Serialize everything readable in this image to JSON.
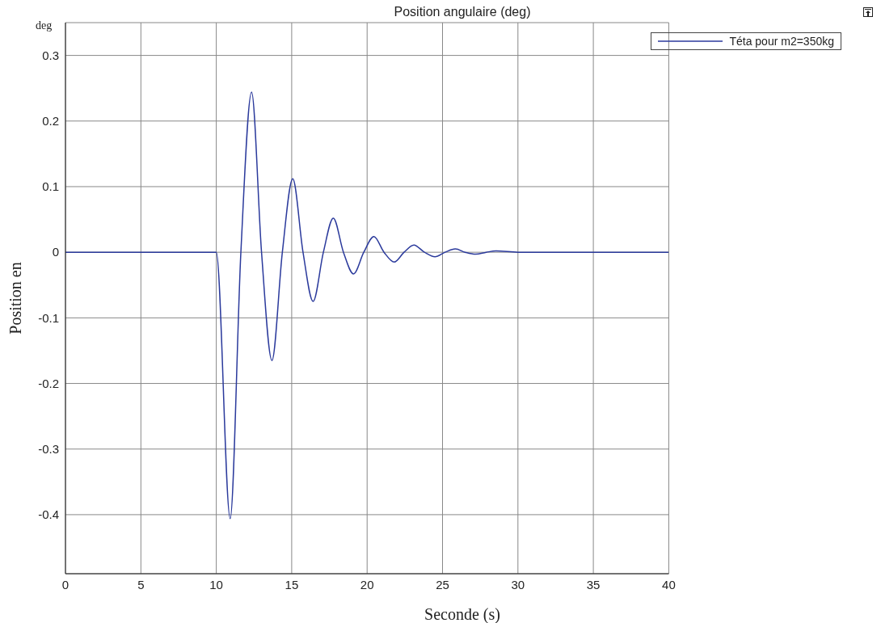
{
  "chart_data": {
    "type": "line",
    "title": "Position angulaire (deg)",
    "xlabel": "Seconde (s)",
    "ylabel": "Position en",
    "annotations": [
      "deg"
    ],
    "x": [
      0,
      10,
      10.92,
      11.63,
      12.34,
      13.0,
      13.69,
      14.38,
      15.07,
      15.75,
      16.42,
      17.1,
      17.76,
      18.43,
      19.1,
      19.78,
      20.45,
      21.12,
      21.8,
      22.45,
      23.1,
      23.8,
      24.5,
      25.17,
      25.85,
      26.5,
      27.2,
      27.9,
      28.55,
      30,
      40
    ],
    "series": [
      {
        "name": "Téta pour m2=350kg",
        "color": "#2b3a9c",
        "values": [
          0,
          0,
          -0.406,
          0,
          0.244,
          0,
          -0.165,
          0,
          0.112,
          0,
          -0.075,
          0,
          0.052,
          0,
          -0.033,
          0,
          0.024,
          0,
          -0.015,
          0,
          0.011,
          0,
          -0.007,
          0,
          0.005,
          0,
          -0.003,
          0,
          0.002,
          0,
          0
        ]
      }
    ],
    "xlim": [
      0,
      40
    ],
    "xticks": [
      0,
      5,
      10,
      15,
      20,
      25,
      30,
      35,
      40
    ],
    "ylim": [
      -0.49,
      0.35
    ],
    "yticks": [
      -0.4,
      -0.3,
      -0.2,
      -0.1,
      0,
      0.1,
      0.2,
      0.3
    ],
    "grid": true,
    "legend": "top right",
    "marker": "none",
    "line_style": "solid"
  }
}
